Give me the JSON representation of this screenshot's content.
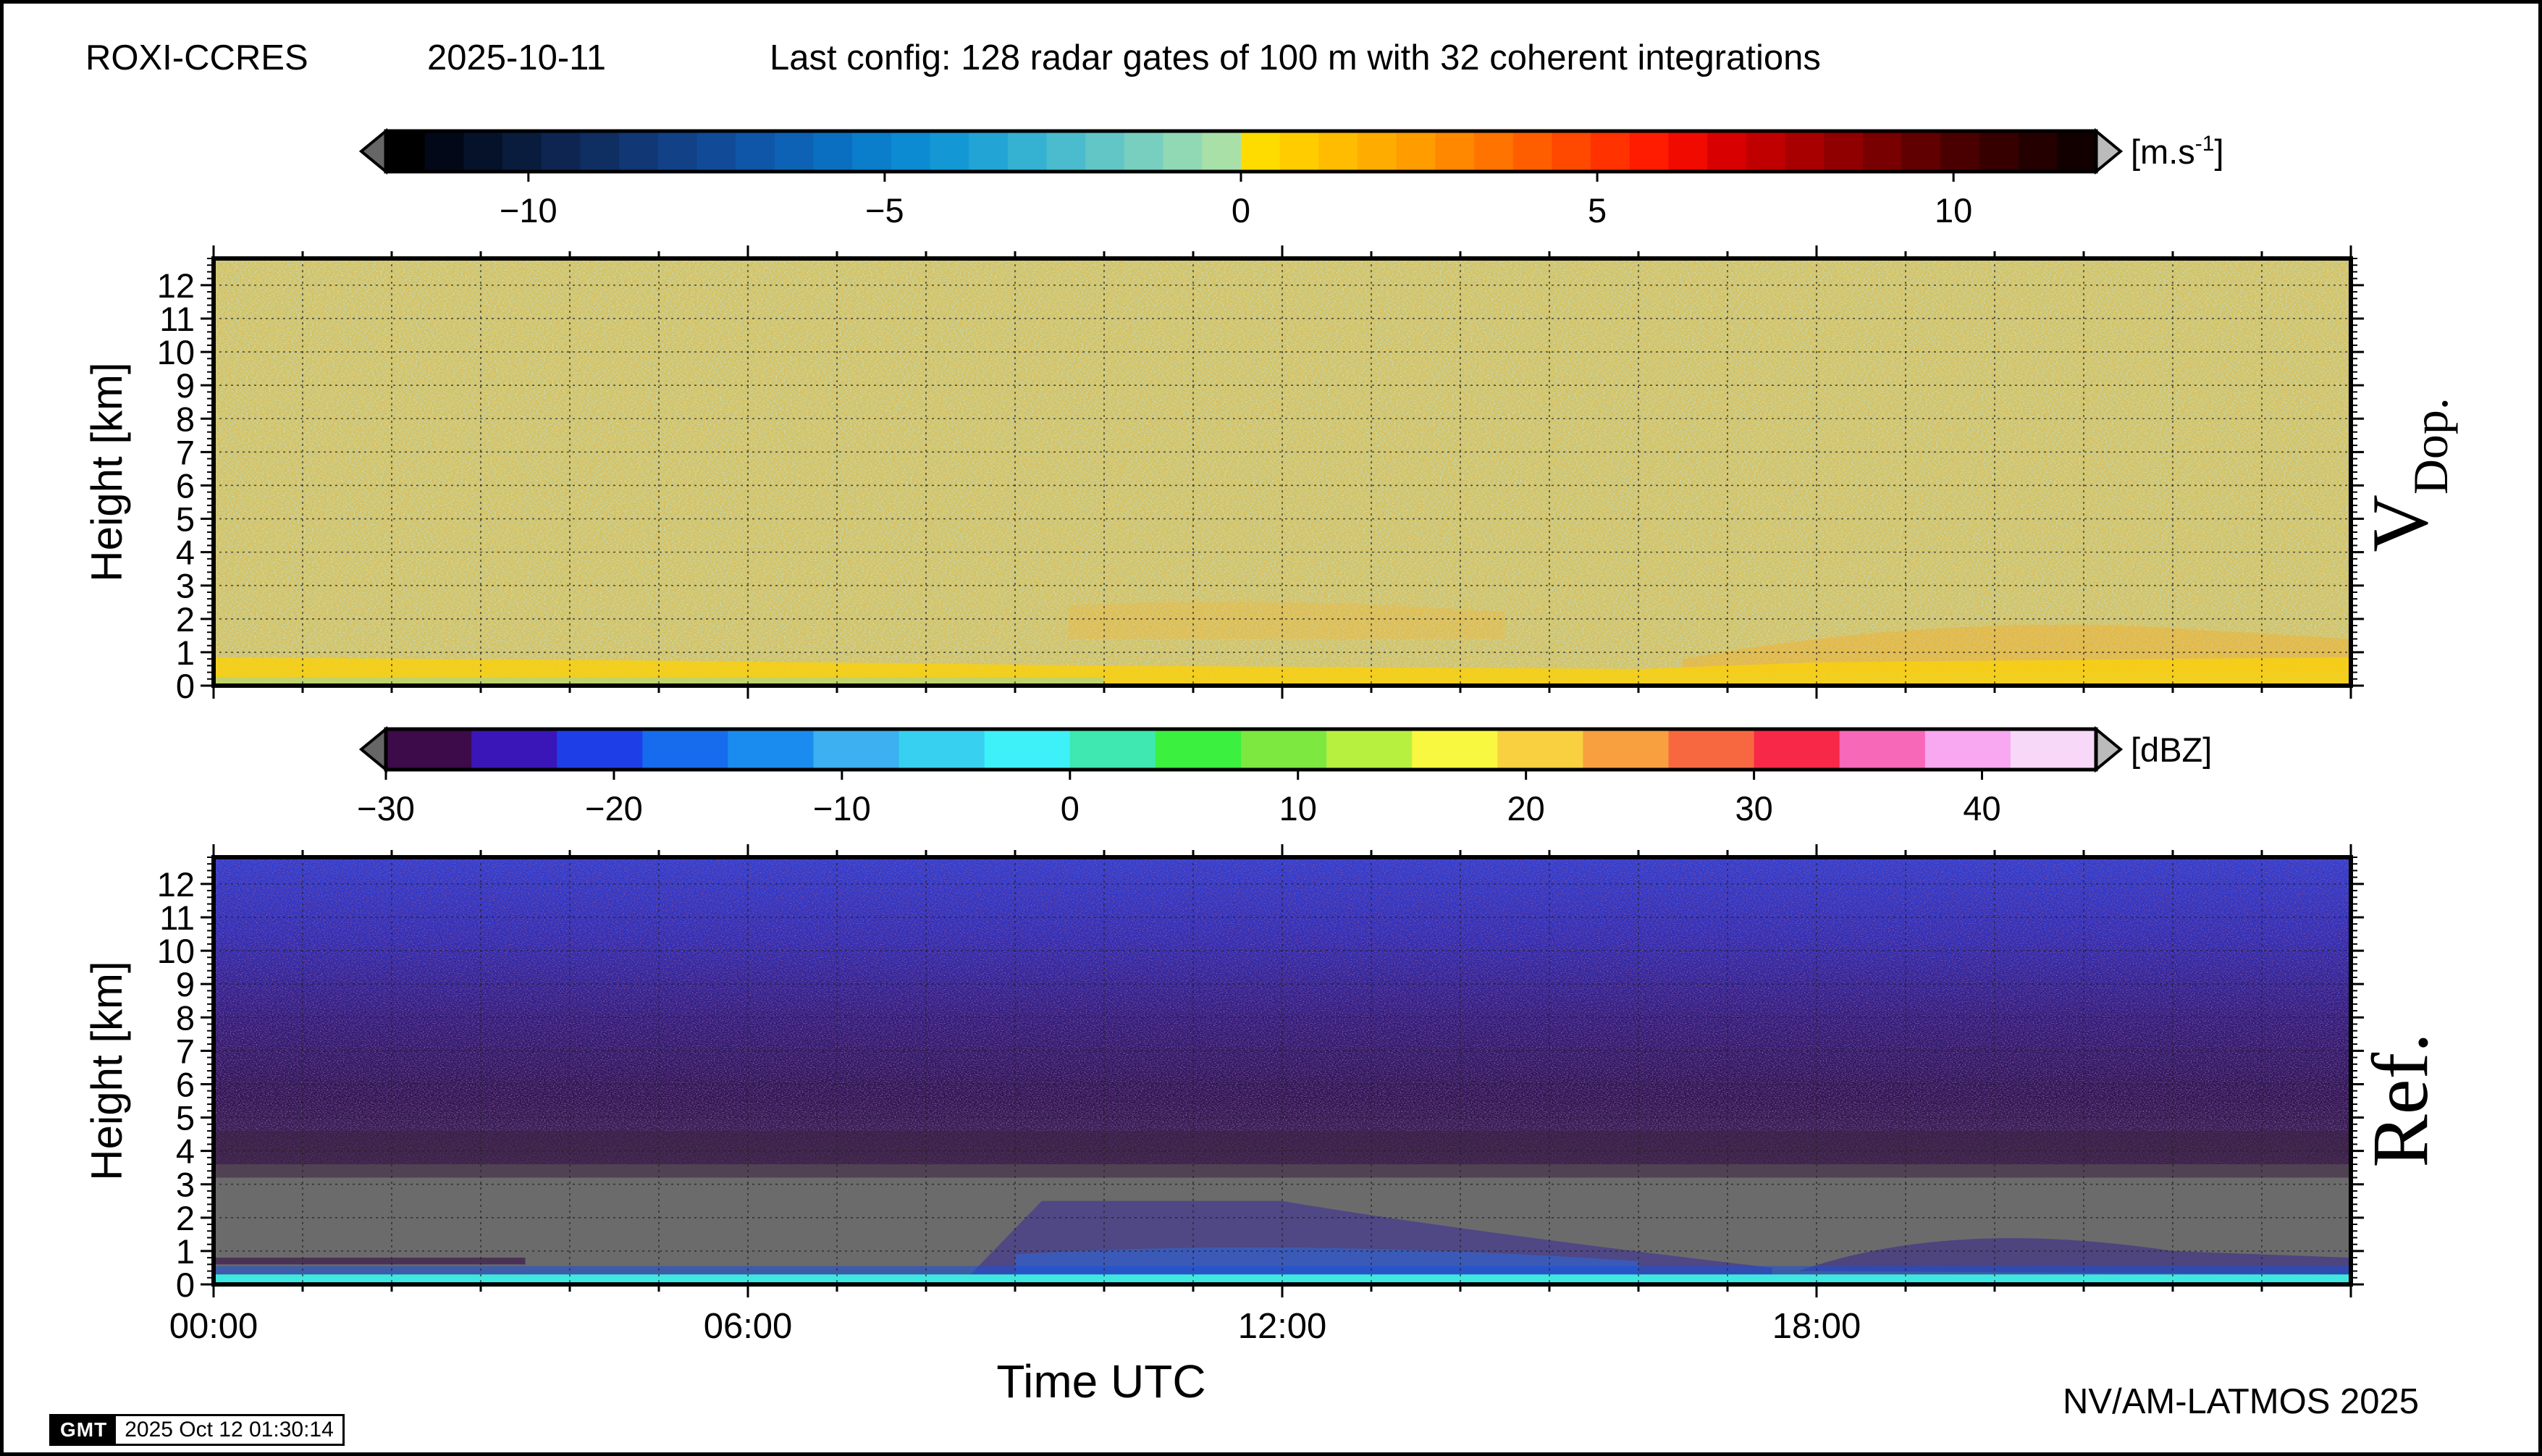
{
  "header": {
    "station": "ROXI-CCRES",
    "date": "2025-10-11",
    "config": "Last config: 128 radar gates of 100 m with 32 coherent integrations"
  },
  "footer": {
    "gmt_logo": "GMT",
    "timestamp": "2025 Oct 12 01:30:14",
    "credit": "NV/AM-LATMOS 2025"
  },
  "chart_data": [
    {
      "type": "heatmap",
      "panel_label": "V",
      "panel_label_sub": "Dop.",
      "ylabel": "Height [km]",
      "xlabel": "",
      "x_ticks": [
        "00:00",
        "06:00",
        "12:00",
        "18:00"
      ],
      "xlim_hours": [
        0,
        24
      ],
      "y_ticks": [
        0,
        1,
        2,
        3,
        4,
        5,
        6,
        7,
        8,
        9,
        10,
        11,
        12
      ],
      "ylim_km": [
        0,
        12.8
      ],
      "grid": true,
      "colorbar": {
        "unit": "[m.s",
        "unit_sup": "-1",
        "unit_close": "]",
        "range": [
          -12,
          12
        ],
        "ticks": [
          -10,
          -5,
          0,
          5,
          10
        ],
        "tick_labels": [
          "−10",
          "−5",
          "0",
          "5",
          "10"
        ],
        "colors": [
          "#000000",
          "#020817",
          "#06122a",
          "#0a1c3d",
          "#0d2550",
          "#0f2e62",
          "#113775",
          "#124187",
          "#114b98",
          "#0f56a8",
          "#0d62b5",
          "#0b6fc1",
          "#0a7dcb",
          "#0c8ad2",
          "#1498d5",
          "#22a5d5",
          "#35b1d2",
          "#4bbccd",
          "#62c6c6",
          "#79cfbf",
          "#91d8b4",
          "#a8e0a8",
          "#ffdc00",
          "#ffcc00",
          "#ffbc00",
          "#ffac00",
          "#ff9c00",
          "#ff8800",
          "#ff7300",
          "#ff5e00",
          "#ff4800",
          "#ff3200",
          "#ff1c00",
          "#f00a00",
          "#d80000",
          "#c00000",
          "#a80000",
          "#900000",
          "#780000",
          "#600000",
          "#4a0000",
          "#360000",
          "#240000",
          "#120000"
        ]
      },
      "description_fields": {
        "background_field_ms": "near 0 (noise, mixed light green and yellow-orange)",
        "boundary_layer_top_km": 0.6,
        "elevated_layer_km": [
          1.5,
          2.5
        ]
      }
    },
    {
      "type": "heatmap",
      "panel_label": "Ref.",
      "ylabel": "Height [km]",
      "xlabel": "Time UTC",
      "x_ticks": [
        "00:00",
        "06:00",
        "12:00",
        "18:00"
      ],
      "xlim_hours": [
        0,
        24
      ],
      "y_ticks": [
        0,
        1,
        2,
        3,
        4,
        5,
        6,
        7,
        8,
        9,
        10,
        11,
        12
      ],
      "ylim_km": [
        0,
        12.8
      ],
      "grid": true,
      "colorbar": {
        "unit": "[dBZ]",
        "range": [
          -30,
          45
        ],
        "ticks": [
          -30,
          -20,
          -10,
          0,
          10,
          20,
          30,
          40
        ],
        "tick_labels": [
          "−30",
          "−20",
          "−10",
          "0",
          "10",
          "20",
          "30",
          "40"
        ],
        "colors": [
          "#3d0a4a",
          "#3a16b8",
          "#1e3fe8",
          "#166cec",
          "#1a8cf0",
          "#3cb0f0",
          "#38d0f0",
          "#3ef0f8",
          "#3ee8b0",
          "#3cf040",
          "#7ce840",
          "#b8f040",
          "#f8f840",
          "#f8d040",
          "#f8a040",
          "#f86840",
          "#f82848",
          "#f868b8",
          "#f8a8f0",
          "#f8d8f8"
        ]
      },
      "description_fields": {
        "no_signal_fill": "#6b6b6b",
        "upper_layer": "blue noise above ~4 km",
        "surface_echo": "cyan band at ~0.2 km"
      }
    }
  ]
}
